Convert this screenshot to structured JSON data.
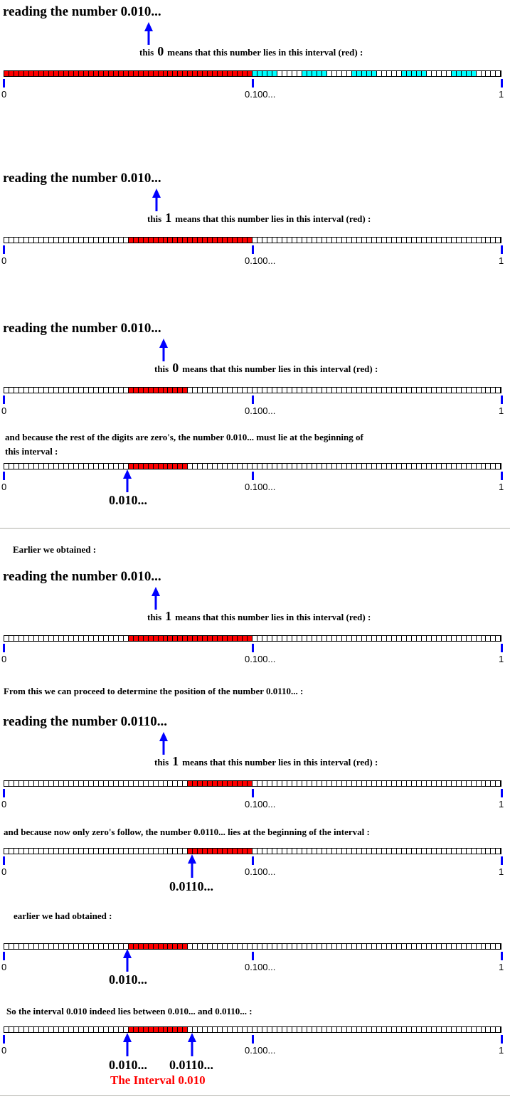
{
  "colors": {
    "interval": "#ff0000",
    "other_intervals": "#00ffff",
    "arrow": "#0000ff",
    "tick": "#0000ff"
  },
  "axis_labels": {
    "start": "0",
    "mid": "0.100...",
    "end": "1"
  },
  "sections": [
    {
      "heading": "reading the number  0.010...",
      "this_word": "this",
      "digit": "0",
      "rest": "means that this number lies in this interval (red) :",
      "red_interval": [
        0,
        0.5
      ],
      "cyan_intervals": [
        [
          0.5,
          0.55
        ],
        [
          0.6,
          0.65
        ],
        [
          0.7,
          0.75
        ],
        [
          0.8,
          0.85
        ],
        [
          0.9,
          0.95
        ]
      ]
    },
    {
      "heading": "reading the number  0.010...",
      "this_word": "this",
      "digit": "1",
      "rest": "means that this number lies in this interval (red) :",
      "red_interval": [
        0.25,
        0.5
      ]
    },
    {
      "heading": "reading the number  0.010...",
      "this_word": "this",
      "digit": "0",
      "rest": "means that this number lies in this interval (red) :",
      "red_interval": [
        0.25,
        0.375
      ]
    },
    {
      "heading": "reading the number  0.010...",
      "this_word": "this",
      "digit": "1",
      "rest": "means that this number lies in this interval (red) :",
      "red_interval": [
        0.25,
        0.5
      ]
    },
    {
      "heading": "reading the number  0.0110...",
      "this_word": "this",
      "digit": "1",
      "rest": "means that this number lies in this interval (red) :",
      "red_interval": [
        0.375,
        0.5
      ]
    }
  ],
  "texts": {
    "because_zeros_1": "and because the rest of the digits are zero's, the number 0.010... must lie at the beginning of",
    "because_zeros_2": "this interval :",
    "earlier_obtained": "Earlier we obtained :",
    "proceed": "From this we can proceed to determine the position of the number  0.0110...   :",
    "now_zeros": "and because now only zero's follow, the number  0.0110...  lies at the beginning of the interval :",
    "earlier_had": "earlier we had obtained :",
    "so_interval": "So the interval  0.010 indeed lies between  0.010... and  0.0110...   :",
    "the_interval": "The Interval  0.010"
  },
  "extra_bars": [
    {
      "red_interval": [
        0.25,
        0.375
      ],
      "marker": "0.010...",
      "marker_value": 0.25
    },
    {
      "red_interval": [
        0.375,
        0.5
      ],
      "marker": "0.0110...",
      "marker_value": 0.375
    },
    {
      "red_interval": [
        0.25,
        0.375
      ],
      "marker": "0.010...",
      "marker_value": 0.25
    },
    {
      "red_interval": [
        0.25,
        0.375
      ],
      "markers": [
        {
          "label": "0.010...",
          "value": 0.25
        },
        {
          "label": "0.0110...",
          "value": 0.375
        }
      ]
    }
  ]
}
